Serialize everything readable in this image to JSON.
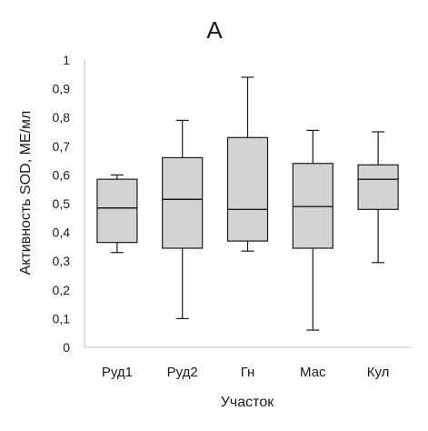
{
  "chart_data": {
    "type": "box",
    "title": "A",
    "xlabel": "Участок",
    "ylabel": "Активность SOD, МЕ/мл",
    "ylim": [
      0,
      1
    ],
    "yticks": [
      {
        "value": 0,
        "label": "0"
      },
      {
        "value": 0.1,
        "label": "0,1"
      },
      {
        "value": 0.2,
        "label": "0,2"
      },
      {
        "value": 0.3,
        "label": "0,3"
      },
      {
        "value": 0.4,
        "label": "0,4"
      },
      {
        "value": 0.5,
        "label": "0,5"
      },
      {
        "value": 0.6,
        "label": "0,6"
      },
      {
        "value": 0.7,
        "label": "0,7"
      },
      {
        "value": 0.8,
        "label": "0,8"
      },
      {
        "value": 0.9,
        "label": "0,9"
      },
      {
        "value": 1,
        "label": "1"
      }
    ],
    "categories": [
      "Руд1",
      "Руд2",
      "Гн",
      "Мас",
      "Кул"
    ],
    "boxes": [
      {
        "category": "Руд1",
        "min": 0.33,
        "q1": 0.365,
        "median": 0.485,
        "q3": 0.585,
        "max": 0.6
      },
      {
        "category": "Руд2",
        "min": 0.1,
        "q1": 0.345,
        "median": 0.515,
        "q3": 0.66,
        "max": 0.79
      },
      {
        "category": "Гн",
        "min": 0.335,
        "q1": 0.37,
        "median": 0.48,
        "q3": 0.73,
        "max": 0.94
      },
      {
        "category": "Мас",
        "min": 0.06,
        "q1": 0.345,
        "median": 0.49,
        "q3": 0.64,
        "max": 0.755
      },
      {
        "category": "Кул",
        "min": 0.295,
        "q1": 0.48,
        "median": 0.585,
        "q3": 0.635,
        "max": 0.75
      }
    ],
    "grid": false,
    "colors": {
      "box_fill": "#d3d3d3",
      "box_stroke": "#1a1a1a",
      "axis": "#bfbfbf",
      "text": "#1a1a1a"
    }
  }
}
